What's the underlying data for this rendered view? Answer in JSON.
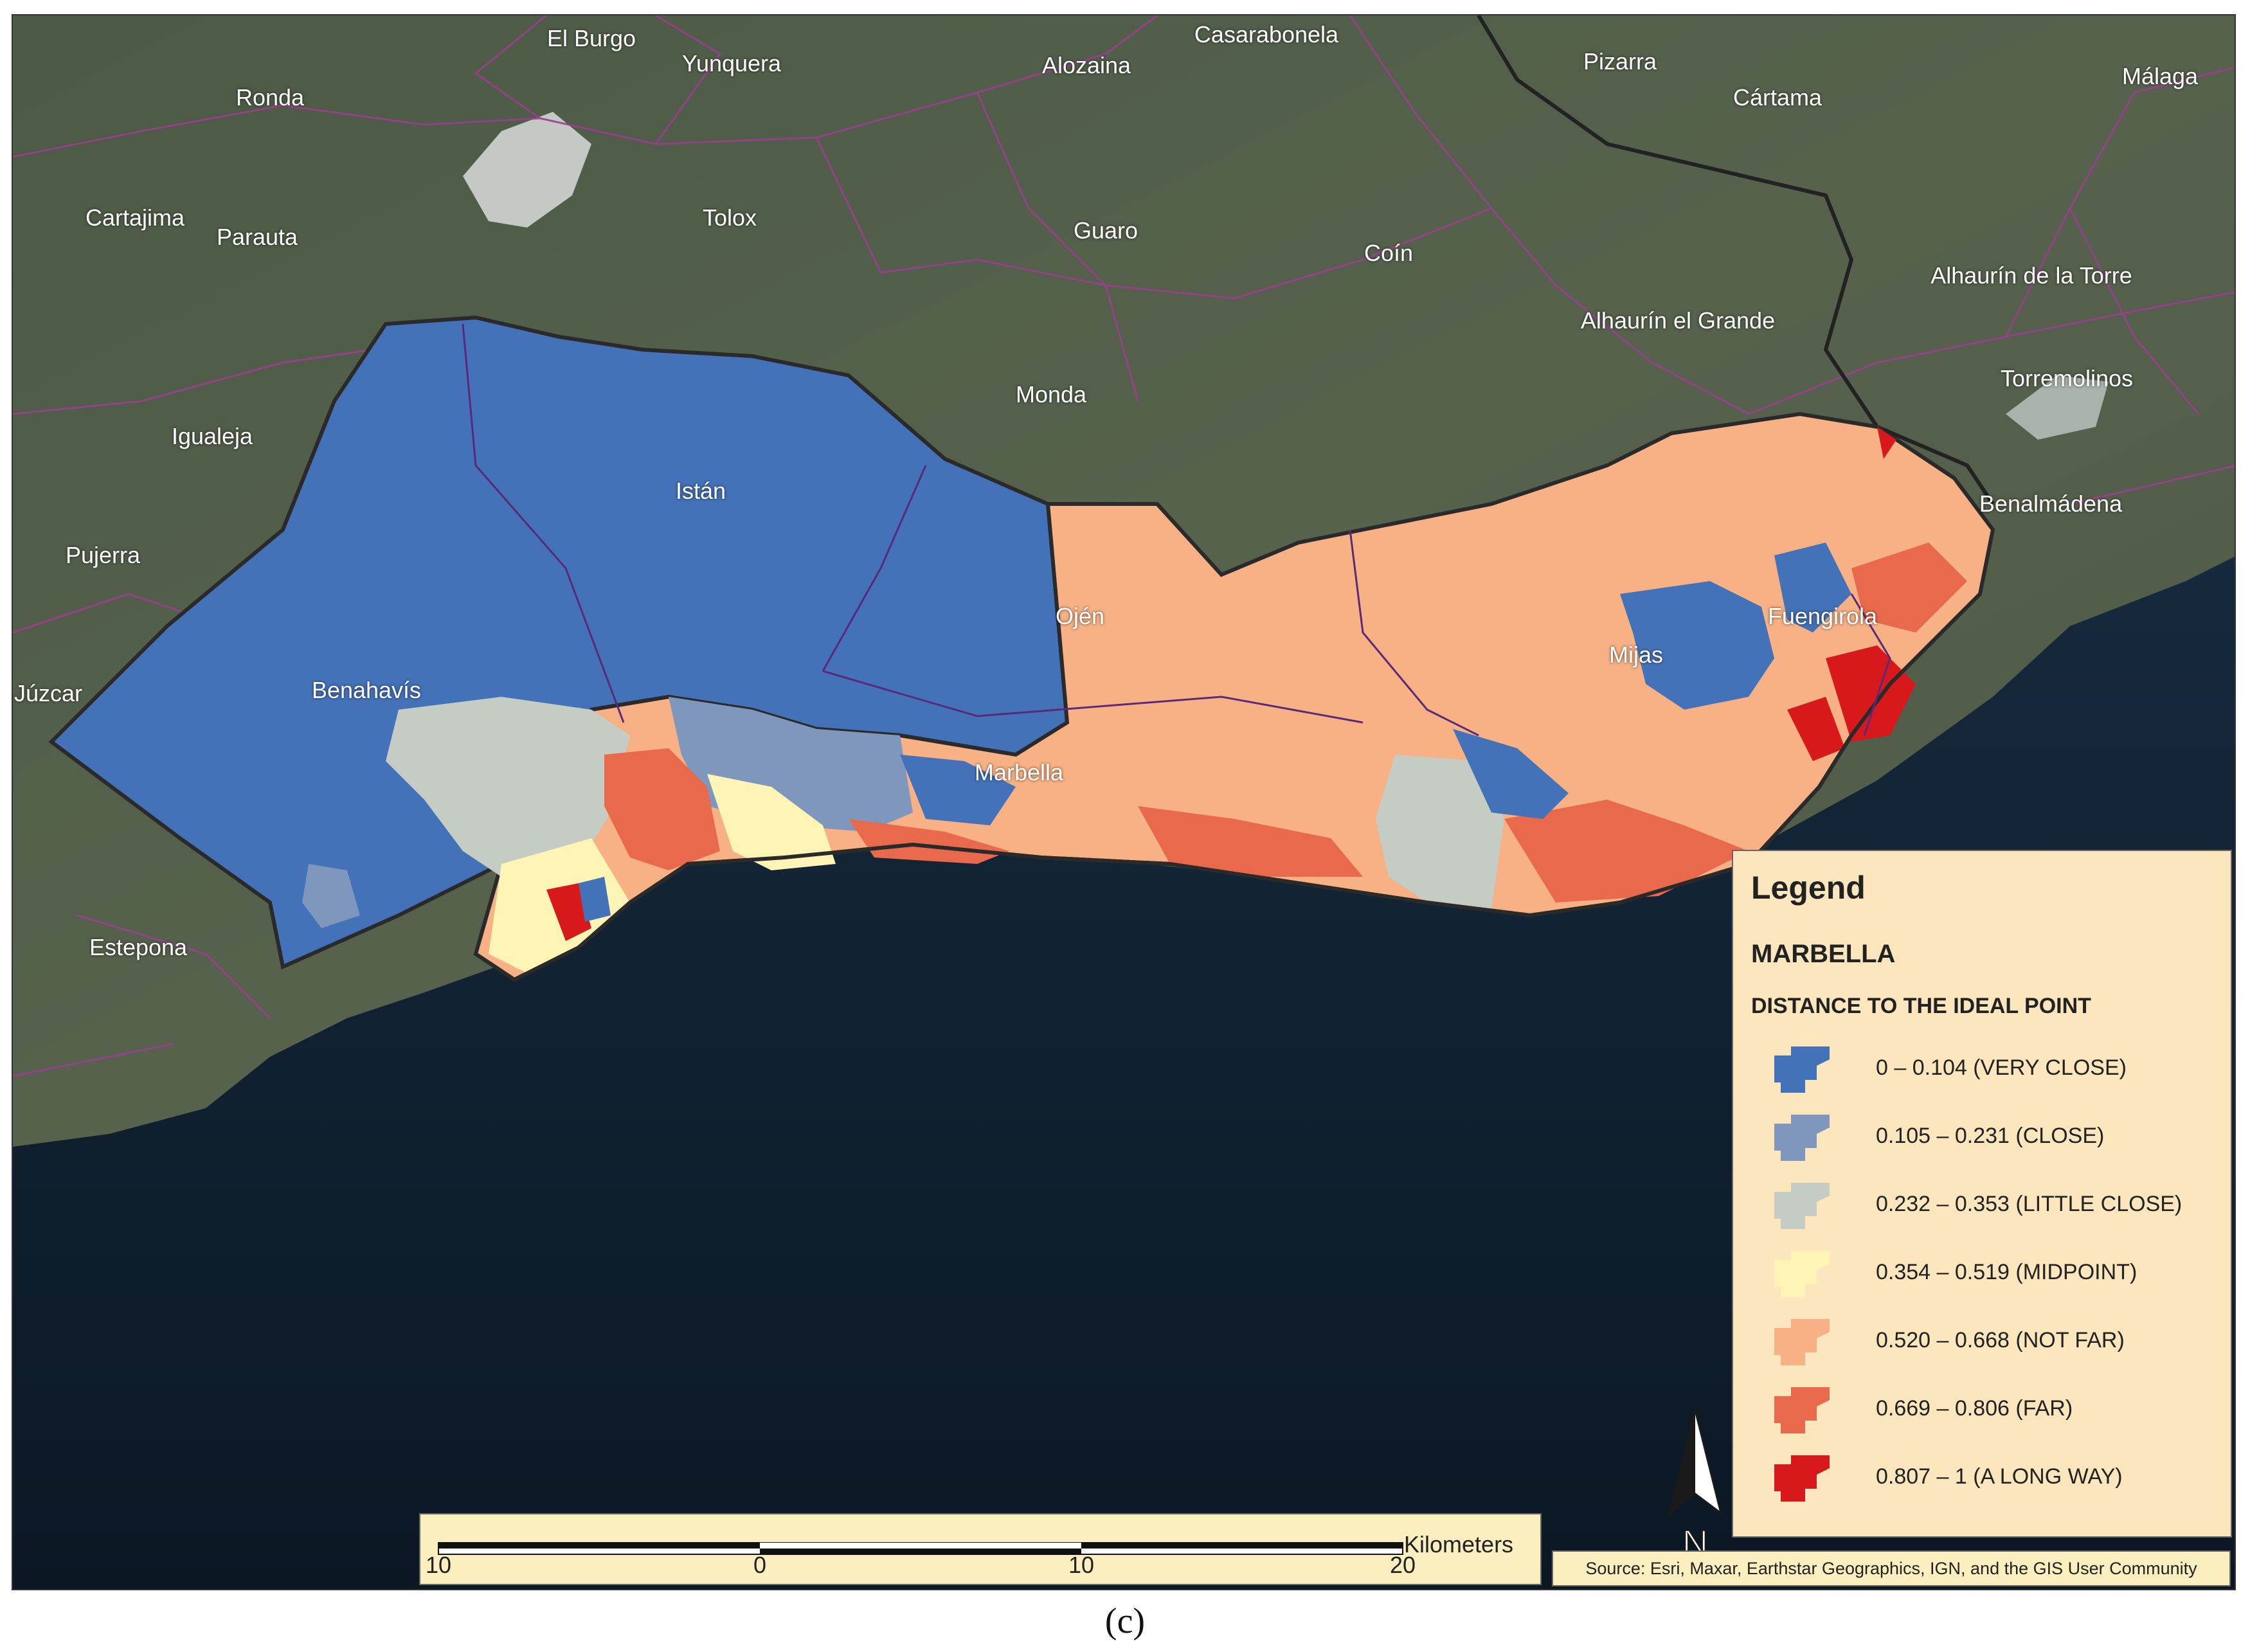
{
  "map": {
    "place_labels": [
      {
        "name": "El Burgo",
        "id": "el-burgo"
      },
      {
        "name": "Yunquera",
        "id": "yunquera"
      },
      {
        "name": "Alozaina",
        "id": "alozaina"
      },
      {
        "name": "Casarabonela",
        "id": "casarabonela"
      },
      {
        "name": "Pizarra",
        "id": "pizarra"
      },
      {
        "name": "Cártama",
        "id": "cartama"
      },
      {
        "name": "Málaga",
        "id": "malaga"
      },
      {
        "name": "Ronda",
        "id": "ronda"
      },
      {
        "name": "Cartajima",
        "id": "cartajima"
      },
      {
        "name": "Parauta",
        "id": "parauta"
      },
      {
        "name": "Tolox",
        "id": "tolox"
      },
      {
        "name": "Guaro",
        "id": "guaro"
      },
      {
        "name": "Coín",
        "id": "coin"
      },
      {
        "name": "Alhaurín de la Torre",
        "id": "alhaurin-de-la-torre"
      },
      {
        "name": "Alhaurín el Grande",
        "id": "alhaurin-el-grande"
      },
      {
        "name": "Igualeja",
        "id": "igualeja"
      },
      {
        "name": "Monda",
        "id": "monda"
      },
      {
        "name": "Torremolinos",
        "id": "torremolinos"
      },
      {
        "name": "Istán",
        "id": "istan"
      },
      {
        "name": "Benalmádena",
        "id": "benalmadena"
      },
      {
        "name": "Pujerra",
        "id": "pujerra"
      },
      {
        "name": "Ojén",
        "id": "ojen"
      },
      {
        "name": "Fuengirola",
        "id": "fuengirola"
      },
      {
        "name": "Mijas",
        "id": "mijas"
      },
      {
        "name": "Júzcar",
        "id": "juzcar"
      },
      {
        "name": "Benahavís",
        "id": "benahavis"
      },
      {
        "name": "Marbella",
        "id": "marbella"
      },
      {
        "name": "Estepona",
        "id": "estepona"
      }
    ]
  },
  "legend": {
    "title": "Legend",
    "layer": "MARBELLA",
    "field": "DISTANCE TO THE IDEAL POINT",
    "classes": [
      {
        "label": "0 – 0.104 (VERY CLOSE)",
        "color": "#4472b8"
      },
      {
        "label": "0.105 – 0.231 (CLOSE)",
        "color": "#7f97bd"
      },
      {
        "label": "0.232 – 0.353 (LITTLE CLOSE)",
        "color": "#c4ccc4"
      },
      {
        "label": "0.354 – 0.519 (MIDPOINT)",
        "color": "#fdf4b6"
      },
      {
        "label": "0.520 – 0.668 (NOT FAR)",
        "color": "#f7b184"
      },
      {
        "label": "0.669 – 0.806 (FAR)",
        "color": "#e8694b"
      },
      {
        "label": "0.807 – 1 (A LONG WAY)",
        "color": "#d7191c"
      }
    ]
  },
  "scale_bar": {
    "unit": "Kilometers",
    "ticks": [
      "10",
      "0",
      "10",
      "20"
    ]
  },
  "north_arrow": {
    "label": "N"
  },
  "source": "Source: Esri, Maxar, Earthstar Geographics, IGN, and the GIS User Community",
  "caption": "(c)"
}
